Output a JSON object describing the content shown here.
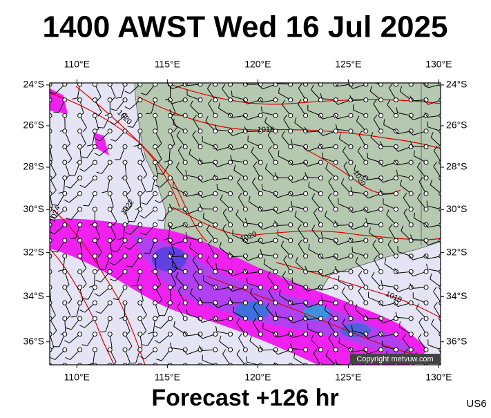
{
  "header": {
    "title": "1400 AWST Wed 16 Jul 2025"
  },
  "map": {
    "xlim": [
      108.5,
      130.1
    ],
    "ylim": [
      -37,
      -23.9
    ],
    "lon_ticks": [
      {
        "value": 110,
        "label": "110°E"
      },
      {
        "value": 115,
        "label": "115°E"
      },
      {
        "value": 120,
        "label": "120°E"
      },
      {
        "value": 125,
        "label": "125°E"
      },
      {
        "value": 130,
        "label": "130°E"
      }
    ],
    "lat_ticks": [
      {
        "value": -24,
        "label": "24°S"
      },
      {
        "value": -26,
        "label": "26°S"
      },
      {
        "value": -28,
        "label": "28°S"
      },
      {
        "value": -30,
        "label": "30°S"
      },
      {
        "value": -32,
        "label": "32°S"
      },
      {
        "value": -34,
        "label": "34°S"
      },
      {
        "value": -36,
        "label": "36°S"
      }
    ],
    "isobar_labels": [
      "1020",
      "1018",
      "1020",
      "1022",
      "1024",
      "1020",
      "1018"
    ],
    "copyright": "Copyright metvuw.com"
  },
  "footer": {
    "forecast": "Forecast +126 hr",
    "code": "US6"
  }
}
